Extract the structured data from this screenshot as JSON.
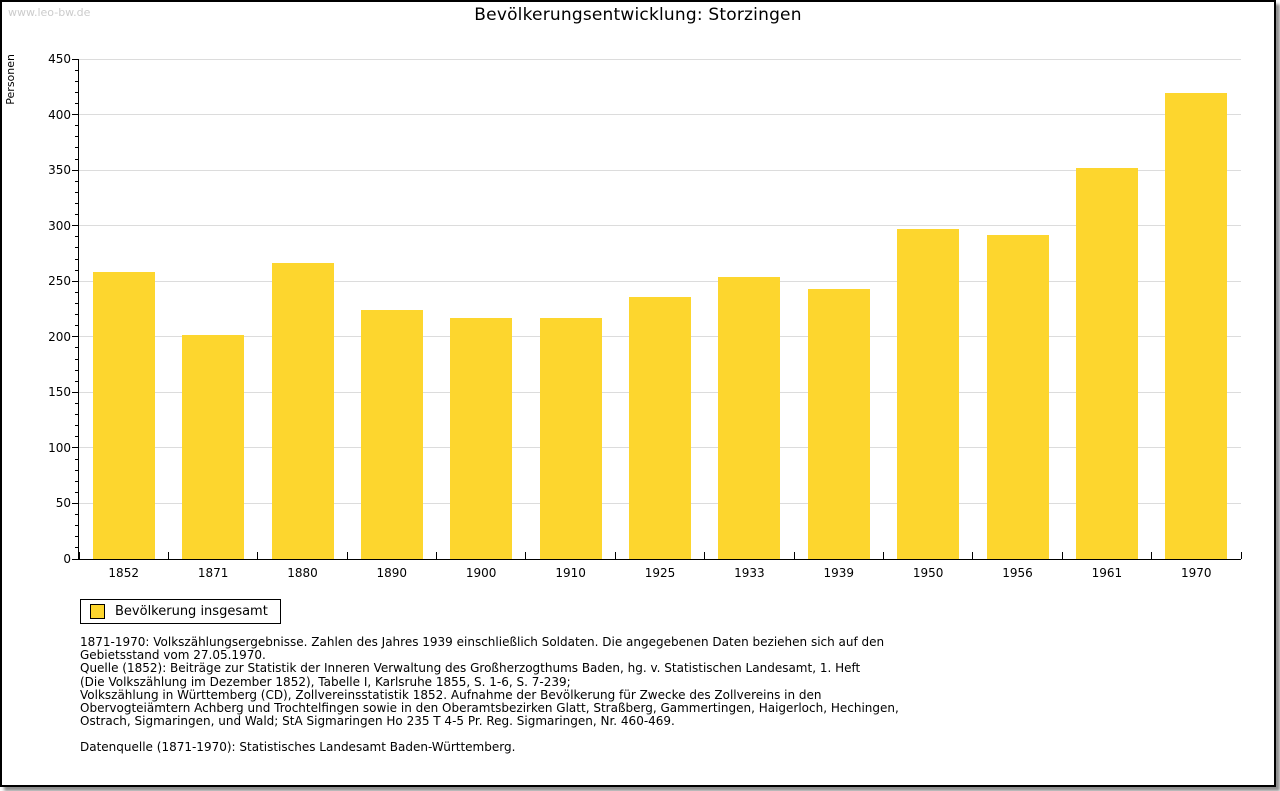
{
  "page": {
    "watermark": "www.leo-bw.de",
    "title": "Bevölkerungsentwicklung: Storzingen"
  },
  "chart_data": {
    "type": "bar",
    "title": "Bevölkerungsentwicklung: Storzingen",
    "ylabel": "Personen",
    "xlabel": "",
    "categories": [
      "1852",
      "1871",
      "1880",
      "1890",
      "1900",
      "1910",
      "1925",
      "1933",
      "1939",
      "1950",
      "1956",
      "1961",
      "1970"
    ],
    "series": [
      {
        "name": "Bevölkerung insgesamt",
        "values": [
          258,
          202,
          266,
          224,
          217,
          217,
          236,
          254,
          243,
          297,
          292,
          352,
          419
        ]
      }
    ],
    "ylim": [
      0,
      450
    ],
    "y_major_step": 50,
    "y_minor_step": 10,
    "grid": "horizontal-major",
    "legend_position": "bottom-left",
    "bar_color": "#FDD62E",
    "gridline_color": "#dcdcdc"
  },
  "legend": {
    "label": "Bevölkerung insgesamt",
    "swatch_color": "#FDD62E"
  },
  "footnotes": {
    "lines": [
      "1871-1970: Volkszählungsergebnisse. Zahlen des Jahres 1939 einschließlich Soldaten. Die angegebenen Daten beziehen sich auf den",
      "Gebietsstand vom 27.05.1970.",
      "Quelle (1852): Beiträge zur Statistik der Inneren Verwaltung des Großherzogthums Baden, hg. v. Statistischen Landesamt, 1. Heft",
      "(Die Volkszählung im Dezember 1852), Tabelle I, Karlsruhe 1855, S. 1-6, S. 7-239;",
      "Volkszählung in Württemberg (CD), Zollvereinsstatistik 1852. Aufnahme der Bevölkerung für Zwecke des Zollvereins in den",
      "Obervogteiämtern Achberg und Trochtelfingen sowie in den Oberamtsbezirken Glatt, Straßberg, Gammertingen, Haigerloch, Hechingen,",
      "Ostrach, Sigmaringen, und Wald; StA Sigmaringen Ho 235 T 4-5 Pr. Reg. Sigmaringen, Nr. 460-469."
    ],
    "datasource": "Datenquelle (1871-1970): Statistisches Landesamt Baden-Württemberg."
  }
}
